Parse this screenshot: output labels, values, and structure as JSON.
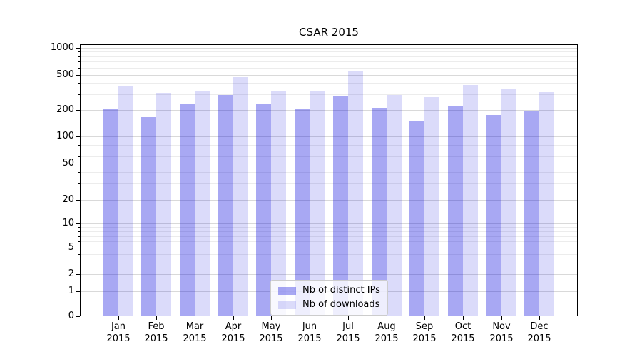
{
  "chart_data": {
    "type": "bar",
    "title": "CSAR 2015",
    "categories": [
      {
        "month": "Jan",
        "year": "2015"
      },
      {
        "month": "Feb",
        "year": "2015"
      },
      {
        "month": "Mar",
        "year": "2015"
      },
      {
        "month": "Apr",
        "year": "2015"
      },
      {
        "month": "May",
        "year": "2015"
      },
      {
        "month": "Jun",
        "year": "2015"
      },
      {
        "month": "Jul",
        "year": "2015"
      },
      {
        "month": "Aug",
        "year": "2015"
      },
      {
        "month": "Sep",
        "year": "2015"
      },
      {
        "month": "Oct",
        "year": "2015"
      },
      {
        "month": "Nov",
        "year": "2015"
      },
      {
        "month": "Dec",
        "year": "2015"
      }
    ],
    "series": [
      {
        "name": "Nb of distinct IPs",
        "color": "rgba(0,0,220,0.34)",
        "values": [
          200,
          165,
          235,
          295,
          235,
          205,
          285,
          210,
          150,
          220,
          175,
          190
        ]
      },
      {
        "name": "Nb of downloads",
        "color": "rgba(0,0,220,0.14)",
        "values": [
          370,
          310,
          330,
          465,
          330,
          325,
          545,
          295,
          280,
          380,
          345,
          315
        ]
      }
    ],
    "y_axis": {
      "scale": "symlog",
      "tick_labels": [
        "1000",
        "500",
        "200",
        "100",
        "50",
        "20",
        "10",
        "5",
        "2",
        "1",
        "0"
      ],
      "tick_values": [
        1000,
        500,
        200,
        100,
        50,
        20,
        10,
        5,
        2,
        1,
        0
      ],
      "minor_values": [
        900,
        800,
        700,
        600,
        400,
        300,
        90,
        80,
        70,
        60,
        40,
        30,
        9,
        8,
        7,
        6,
        4,
        3
      ],
      "range": [
        0,
        1000
      ]
    },
    "legend": {
      "position": "bottom-center"
    },
    "grid": true
  },
  "colors": {
    "grid_major": "#d9d9d9",
    "grid_minor": "#ececec",
    "axis_frame": "#000000",
    "legend_border": "#cccccc",
    "legend_background": "rgba(255,255,255,0.8)",
    "background": "#ffffff"
  }
}
